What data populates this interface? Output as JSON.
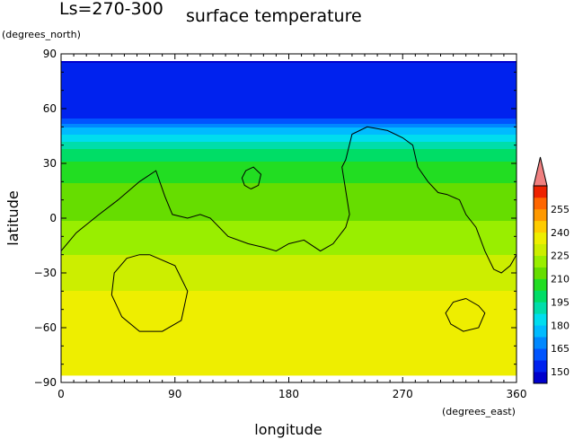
{
  "header": {
    "season": "Ls=270-300",
    "title": "surface temperature"
  },
  "chart_data": {
    "type": "heatmap",
    "title": "surface temperature",
    "xlabel": "longitude",
    "xunit": "(degrees_east)",
    "ylabel": "latitude",
    "yunit": "(degrees_north)",
    "xlim": [
      0,
      360
    ],
    "ylim": [
      -90,
      90
    ],
    "x_ticks": [
      "0",
      "90",
      "180",
      "270",
      "360"
    ],
    "y_ticks": [
      "90",
      "60",
      "30",
      "0",
      "−30",
      "−60",
      "−90"
    ],
    "colorbar": {
      "min": 142.5,
      "max": 262.5,
      "step": 7.5,
      "labels": [
        "150",
        "165",
        "180",
        "195",
        "210",
        "225",
        "240",
        "255"
      ],
      "colors": [
        "#0000cc",
        "#0022ee",
        "#0055ff",
        "#0088ff",
        "#00bbff",
        "#00ddee",
        "#00ddaa",
        "#00dd66",
        "#22dd22",
        "#66dd00",
        "#99ee00",
        "#ccee00",
        "#eeee00",
        "#ffcc00",
        "#ff9900",
        "#ff6600",
        "#ee2200"
      ],
      "overflow_color": "#f08080"
    },
    "zonal_profile": {
      "lat": [
        90,
        85,
        60,
        55,
        52,
        50,
        47,
        44,
        41,
        37,
        33,
        28,
        23,
        17,
        10,
        3,
        -5,
        -13,
        -20,
        -28,
        -35,
        -42,
        -47,
        -52,
        -90
      ],
      "temperature": [
        146,
        150,
        150,
        157,
        164,
        172,
        178,
        184,
        190,
        196,
        200,
        205,
        208,
        211,
        213,
        216,
        219,
        222,
        225,
        228,
        231,
        233,
        236,
        239,
        239
      ]
    },
    "contours": [
      {
        "lon": [
          0,
          12,
          30,
          45,
          62,
          75,
          82,
          88,
          100,
          110,
          118,
          132,
          148,
          160,
          170,
          180,
          192,
          205,
          215,
          225,
          228,
          222,
          225,
          230,
          242,
          258,
          270,
          278,
          282,
          290,
          298,
          305,
          315,
          320,
          328,
          335,
          342,
          348,
          355,
          360
        ],
        "lat": [
          -18,
          -8,
          2,
          10,
          20,
          26,
          12,
          2,
          0,
          2,
          0,
          -10,
          -14,
          -16,
          -18,
          -14,
          -12,
          -18,
          -14,
          -5,
          2,
          28,
          32,
          46,
          50,
          48,
          44,
          40,
          28,
          20,
          14,
          13,
          10,
          2,
          -5,
          -18,
          -28,
          -30,
          -26,
          -20
        ]
      },
      {
        "lon": [
          150,
          156,
          158,
          152,
          146,
          143,
          145,
          150
        ],
        "lat": [
          16,
          18,
          24,
          28,
          26,
          22,
          18,
          16
        ]
      },
      {
        "lon": [
          70,
          90,
          100,
          95,
          80,
          62,
          48,
          40,
          42,
          52,
          62,
          70
        ],
        "lat": [
          -20,
          -26,
          -40,
          -56,
          -62,
          -62,
          -54,
          -42,
          -30,
          -22,
          -20,
          -20
        ]
      },
      {
        "lon": [
          320,
          330,
          335,
          330,
          318,
          308,
          304,
          310,
          320
        ],
        "lat": [
          -44,
          -48,
          -52,
          -60,
          -62,
          -58,
          -52,
          -46,
          -44
        ]
      }
    ]
  }
}
